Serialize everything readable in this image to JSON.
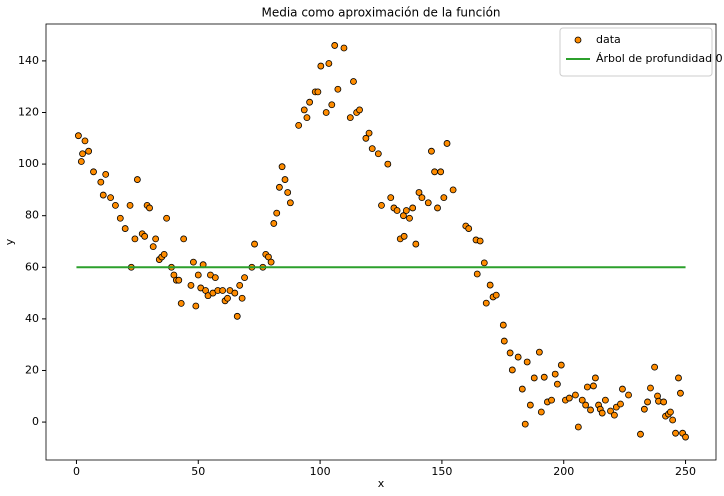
{
  "chart_data": {
    "type": "scatter",
    "title": "Media como aproximación de la función",
    "xlabel": "x",
    "ylabel": "y",
    "xlim": [
      -12.5,
      262.5
    ],
    "ylim": [
      -14.7,
      154.3
    ],
    "xticks": [
      0,
      50,
      100,
      150,
      200,
      250
    ],
    "yticks": [
      0,
      20,
      40,
      60,
      80,
      100,
      120,
      140
    ],
    "legend": "upper right",
    "series": [
      {
        "name": "data",
        "type": "scatter",
        "color": "#ff8c00",
        "x": [
          0.8,
          2,
          2.5,
          3.5,
          5,
          7,
          10,
          11,
          12,
          14,
          16,
          18,
          20,
          22,
          22.5,
          24,
          25,
          27,
          28,
          29,
          30,
          31.5,
          32.5,
          34,
          35,
          36,
          37,
          39,
          40,
          41,
          42,
          43,
          44,
          47,
          48,
          49,
          50,
          51,
          52,
          53,
          54,
          55,
          56,
          57,
          58,
          60,
          61,
          62,
          63,
          65,
          66,
          67,
          68,
          69,
          72,
          73.1,
          76.5,
          77.7,
          78.8,
          79.9,
          81,
          82.2,
          83.3,
          84.4,
          85.6,
          86.7,
          87.8,
          91.2,
          93.5,
          94.6,
          95.7,
          98,
          99.1,
          100.3,
          102.5,
          103.6,
          104.8,
          106,
          107.3,
          109.8,
          112.4,
          113.7,
          115,
          116.2,
          118.8,
          120.1,
          121.4,
          123.9,
          125.2,
          127.8,
          129,
          130.3,
          131.6,
          132.9,
          134.2,
          134.5,
          135.4,
          136.7,
          138,
          139.3,
          140.6,
          141.8,
          144.4,
          145.7,
          147,
          148.2,
          149.5,
          150.8,
          152.1,
          154.6,
          159.8,
          161,
          164,
          164.5,
          165.7,
          167.4,
          168.2,
          169.8,
          171,
          172.3,
          175.2,
          175.6,
          178,
          178.9,
          181.3,
          183,
          184.2,
          185,
          186.3,
          187.9,
          190,
          190.8,
          192,
          193.3,
          195,
          196.5,
          197.4,
          199,
          200.7,
          202.3,
          204.8,
          206,
          207.6,
          209,
          209.7,
          211,
          212.2,
          213,
          214.3,
          215,
          215.8,
          217.1,
          219.2,
          220.8,
          221.6,
          223.3,
          224.1,
          226.6,
          231.5,
          233.1,
          234.4,
          235.6,
          237.3,
          238.5,
          238.9,
          241,
          241.8,
          243,
          243.8,
          244.7,
          245.9,
          247.1,
          247.9,
          248.8,
          250
        ],
        "values": [
          111,
          101,
          104,
          109,
          105,
          97,
          93,
          88,
          96,
          87,
          84,
          79,
          75,
          84,
          60,
          71,
          94,
          73,
          72,
          84,
          83,
          68,
          71,
          63,
          64,
          65,
          79,
          60,
          57,
          55,
          55,
          46,
          71,
          53,
          62,
          45,
          57,
          52,
          61,
          51,
          49,
          57,
          50,
          56,
          51,
          51,
          47,
          48,
          51,
          50,
          41,
          53,
          48,
          56,
          60,
          69,
          60,
          65,
          64,
          62,
          77,
          81,
          91,
          99,
          94,
          89,
          85,
          115,
          121,
          118,
          124,
          128,
          128,
          138,
          120,
          139,
          123,
          146,
          129,
          145,
          118,
          132,
          120,
          121,
          110,
          112,
          106,
          104,
          84,
          100,
          87,
          83,
          82,
          71,
          80,
          72,
          82,
          79,
          83,
          69,
          89,
          87,
          85,
          105,
          97,
          83,
          97,
          87,
          108,
          90,
          76,
          75,
          70.6,
          57.4,
          70.2,
          61.7,
          46.1,
          53.1,
          48.5,
          49.2,
          37.6,
          31.4,
          26.8,
          20.2,
          25.2,
          12.8,
          -0.8,
          23.3,
          6.6,
          17.1,
          27.1,
          3.9,
          17.4,
          7.8,
          8.5,
          18.6,
          14.7,
          22.1,
          8.5,
          9.3,
          10.5,
          -1.9,
          8.5,
          6.6,
          13.6,
          4.7,
          14,
          17.1,
          6.6,
          5,
          3.5,
          8.5,
          4.3,
          2.7,
          5.8,
          7,
          12.8,
          10.5,
          -4.7,
          5,
          7.8,
          13.2,
          21.3,
          10.1,
          8.1,
          7.8,
          2.3,
          3.1,
          3.9,
          0.8,
          -4.3,
          17.1,
          11.2,
          -4.3,
          -5.8
        ]
      },
      {
        "name": "Árbol de profundidad 0",
        "type": "line",
        "color": "#2ca02c",
        "x": [
          0,
          250
        ],
        "values": [
          60,
          60
        ]
      }
    ]
  }
}
